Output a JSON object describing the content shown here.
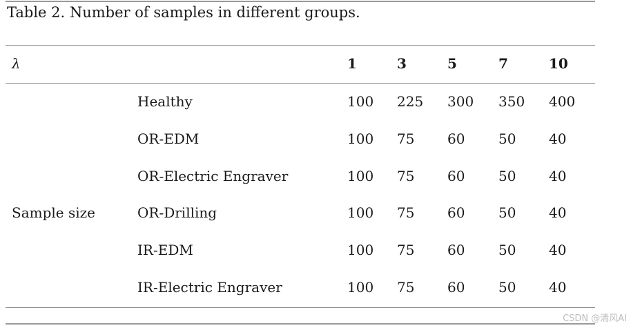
{
  "caption": "Table 2. Number of samples in different groups.",
  "table": {
    "header_symbol": "λ",
    "columns": [
      "1",
      "3",
      "5",
      "7",
      "10"
    ],
    "group_label": "Sample size",
    "rows": [
      {
        "label": "Healthy",
        "values": [
          "100",
          "225",
          "300",
          "350",
          "400"
        ]
      },
      {
        "label": "OR-EDM",
        "values": [
          "100",
          "75",
          "60",
          "50",
          "40"
        ]
      },
      {
        "label": "OR-Electric Engraver",
        "values": [
          "100",
          "75",
          "60",
          "50",
          "40"
        ]
      },
      {
        "label": "OR-Drilling",
        "values": [
          "100",
          "75",
          "60",
          "50",
          "40"
        ]
      },
      {
        "label": "IR-EDM",
        "values": [
          "100",
          "75",
          "60",
          "50",
          "40"
        ]
      },
      {
        "label": "IR-Electric Engraver",
        "values": [
          "100",
          "75",
          "60",
          "50",
          "40"
        ]
      }
    ]
  },
  "watermark": "CSDN @清风AI"
}
